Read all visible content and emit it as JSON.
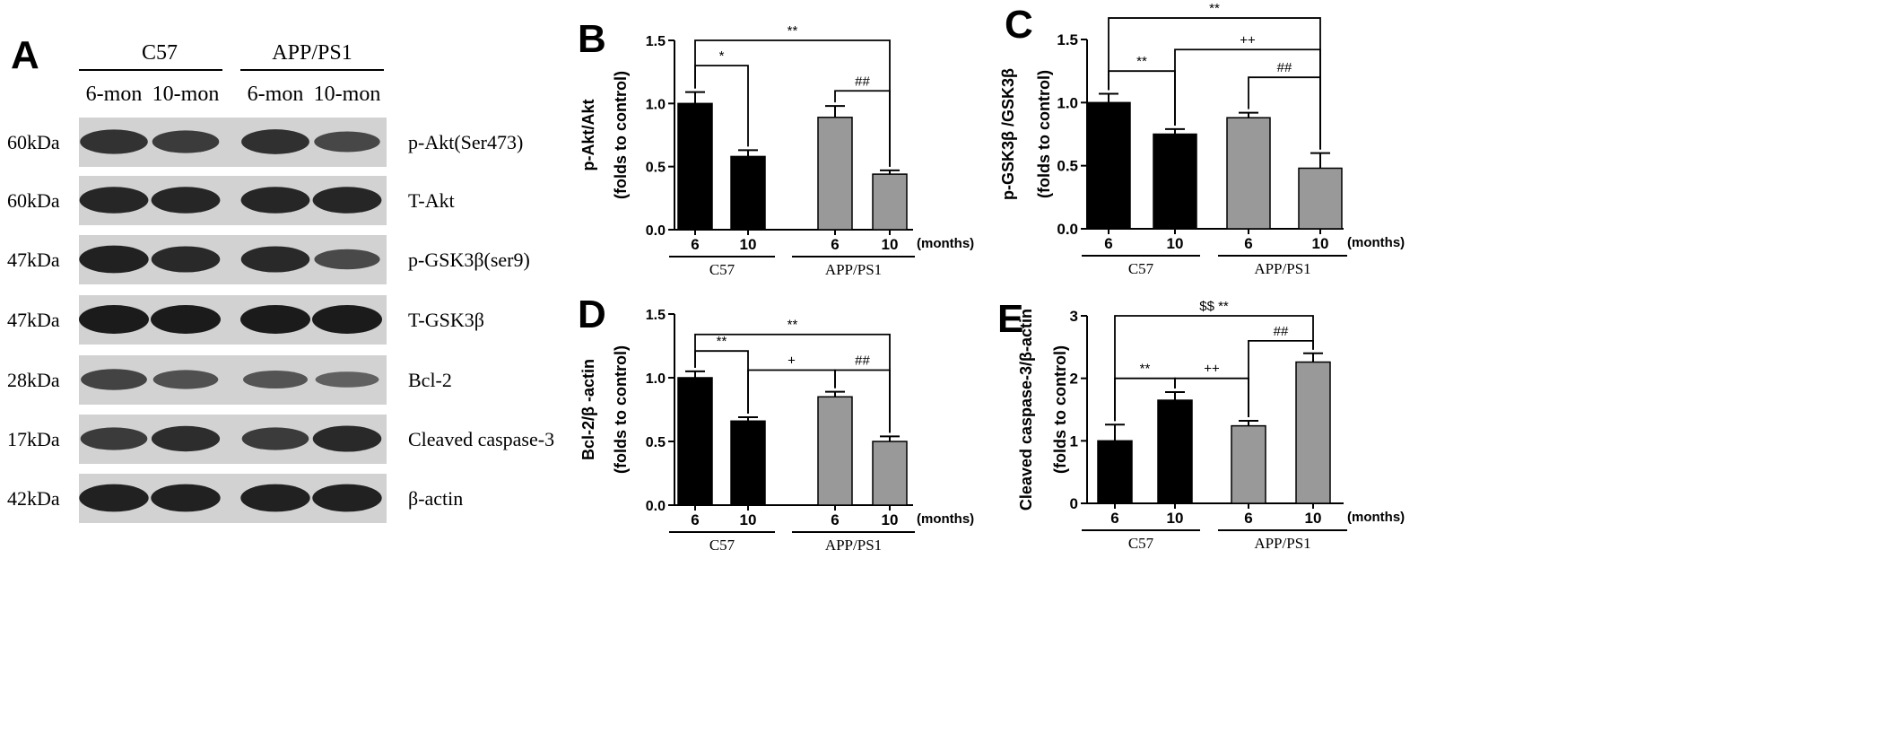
{
  "panel_a": {
    "letter": "A",
    "groups": [
      "C57",
      "APP/PS1"
    ],
    "lanes": [
      "6-mon",
      "10-mon",
      "6-mon",
      "10-mon"
    ],
    "rows": [
      {
        "kda": "60kDa",
        "protein": "p-Akt(Ser473)",
        "bands": [
          0.8,
          0.72,
          0.82,
          0.62
        ]
      },
      {
        "kda": "60kDa",
        "protein": "T-Akt",
        "bands": [
          0.9,
          0.9,
          0.9,
          0.9
        ]
      },
      {
        "kda": "47kDa",
        "protein": "p-GSK3β(ser9)",
        "bands": [
          0.95,
          0.88,
          0.88,
          0.6
        ]
      },
      {
        "kda": "47kDa",
        "protein": "T-GSK3β",
        "bands": [
          1.0,
          1.0,
          1.0,
          1.0
        ]
      },
      {
        "kda": "28kDa",
        "protein": "Bcl-2",
        "bands": [
          0.65,
          0.55,
          0.5,
          0.4
        ]
      },
      {
        "kda": "17kDa",
        "protein": "Cleaved caspase-3",
        "bands": [
          0.72,
          0.85,
          0.72,
          0.88
        ]
      },
      {
        "kda": "42kDa",
        "protein": "β-actin",
        "bands": [
          0.95,
          0.95,
          0.95,
          0.95
        ]
      }
    ]
  },
  "chart_data": [
    {
      "panel": "B",
      "type": "bar",
      "ylabel_lines": [
        "p-Akt/Akt",
        "(folds to control)"
      ],
      "ylim": [
        0,
        1.5
      ],
      "yticks": [
        "0.0",
        "0.5",
        "1.0",
        "1.5"
      ],
      "categories": [
        "6",
        "10",
        "6",
        "10"
      ],
      "x_unit": "(months)",
      "groups": [
        "C57",
        "APP/PS1"
      ],
      "values": [
        1.0,
        0.58,
        0.89,
        0.44
      ],
      "errors": [
        0.09,
        0.05,
        0.09,
        0.03
      ],
      "colors": [
        "#000000",
        "#000000",
        "#999999",
        "#999999"
      ],
      "brackets": [
        {
          "from": 0,
          "to": 1,
          "y": 1.3,
          "label": "*"
        },
        {
          "from": 2,
          "to": 3,
          "y": 1.1,
          "label": "##"
        },
        {
          "from": 0,
          "to": 3,
          "y": 1.5,
          "label": "**"
        }
      ]
    },
    {
      "panel": "C",
      "type": "bar",
      "ylabel_lines": [
        "p-GSK3β /GSK3β",
        "(folds to control)"
      ],
      "ylim": [
        0,
        1.5
      ],
      "yticks": [
        "0.0",
        "0.5",
        "1.0",
        "1.5"
      ],
      "categories": [
        "6",
        "10",
        "6",
        "10"
      ],
      "x_unit": "(months)",
      "groups": [
        "C57",
        "APP/PS1"
      ],
      "values": [
        1.0,
        0.75,
        0.88,
        0.48
      ],
      "errors": [
        0.07,
        0.04,
        0.04,
        0.12
      ],
      "colors": [
        "#000000",
        "#000000",
        "#999999",
        "#999999"
      ],
      "brackets": [
        {
          "from": 0,
          "to": 1,
          "y": 1.25,
          "label": "**"
        },
        {
          "from": 2,
          "to": 3,
          "y": 1.2,
          "label": "##"
        },
        {
          "from": 1,
          "to": 3,
          "y": 1.42,
          "label": "++"
        },
        {
          "from": 0,
          "to": 3,
          "y": 1.67,
          "label": "**"
        }
      ]
    },
    {
      "panel": "D",
      "type": "bar",
      "ylabel_lines": [
        "Bcl-2/β -actin",
        "(folds to control)"
      ],
      "ylim": [
        0,
        1.5
      ],
      "yticks": [
        "0.0",
        "0.5",
        "1.0",
        "1.5"
      ],
      "categories": [
        "6",
        "10",
        "6",
        "10"
      ],
      "x_unit": "(months)",
      "groups": [
        "C57",
        "APP/PS1"
      ],
      "values": [
        1.0,
        0.66,
        0.85,
        0.5
      ],
      "errors": [
        0.05,
        0.03,
        0.04,
        0.04
      ],
      "colors": [
        "#000000",
        "#000000",
        "#999999",
        "#999999"
      ],
      "brackets": [
        {
          "from": 0,
          "to": 1,
          "y": 1.21,
          "label": "**"
        },
        {
          "from": 1,
          "to": 2,
          "y": 1.06,
          "label": "+"
        },
        {
          "from": 2,
          "to": 3,
          "y": 1.06,
          "label": "##"
        },
        {
          "from": 0,
          "to": 3,
          "y": 1.34,
          "label": "**"
        }
      ]
    },
    {
      "panel": "E",
      "type": "bar",
      "ylabel_lines": [
        "Cleaved caspase-3/β-actin",
        "(folds to control)"
      ],
      "ylim": [
        0,
        3
      ],
      "yticks": [
        "0",
        "1",
        "2",
        "3"
      ],
      "categories": [
        "6",
        "10",
        "6",
        "10"
      ],
      "x_unit": "(months)",
      "groups": [
        "C57",
        "APP/PS1"
      ],
      "values": [
        1.0,
        1.65,
        1.24,
        2.26
      ],
      "errors": [
        0.26,
        0.13,
        0.08,
        0.14
      ],
      "colors": [
        "#000000",
        "#000000",
        "#999999",
        "#999999"
      ],
      "brackets": [
        {
          "from": 0,
          "to": 1,
          "y": 2.0,
          "label": "**"
        },
        {
          "from": 1,
          "to": 2,
          "y": 2.0,
          "label": "++"
        },
        {
          "from": 2,
          "to": 3,
          "y": 2.6,
          "label": "##"
        },
        {
          "from": 0,
          "to": 3,
          "y": 3.0,
          "label": "$$    **"
        }
      ]
    }
  ]
}
